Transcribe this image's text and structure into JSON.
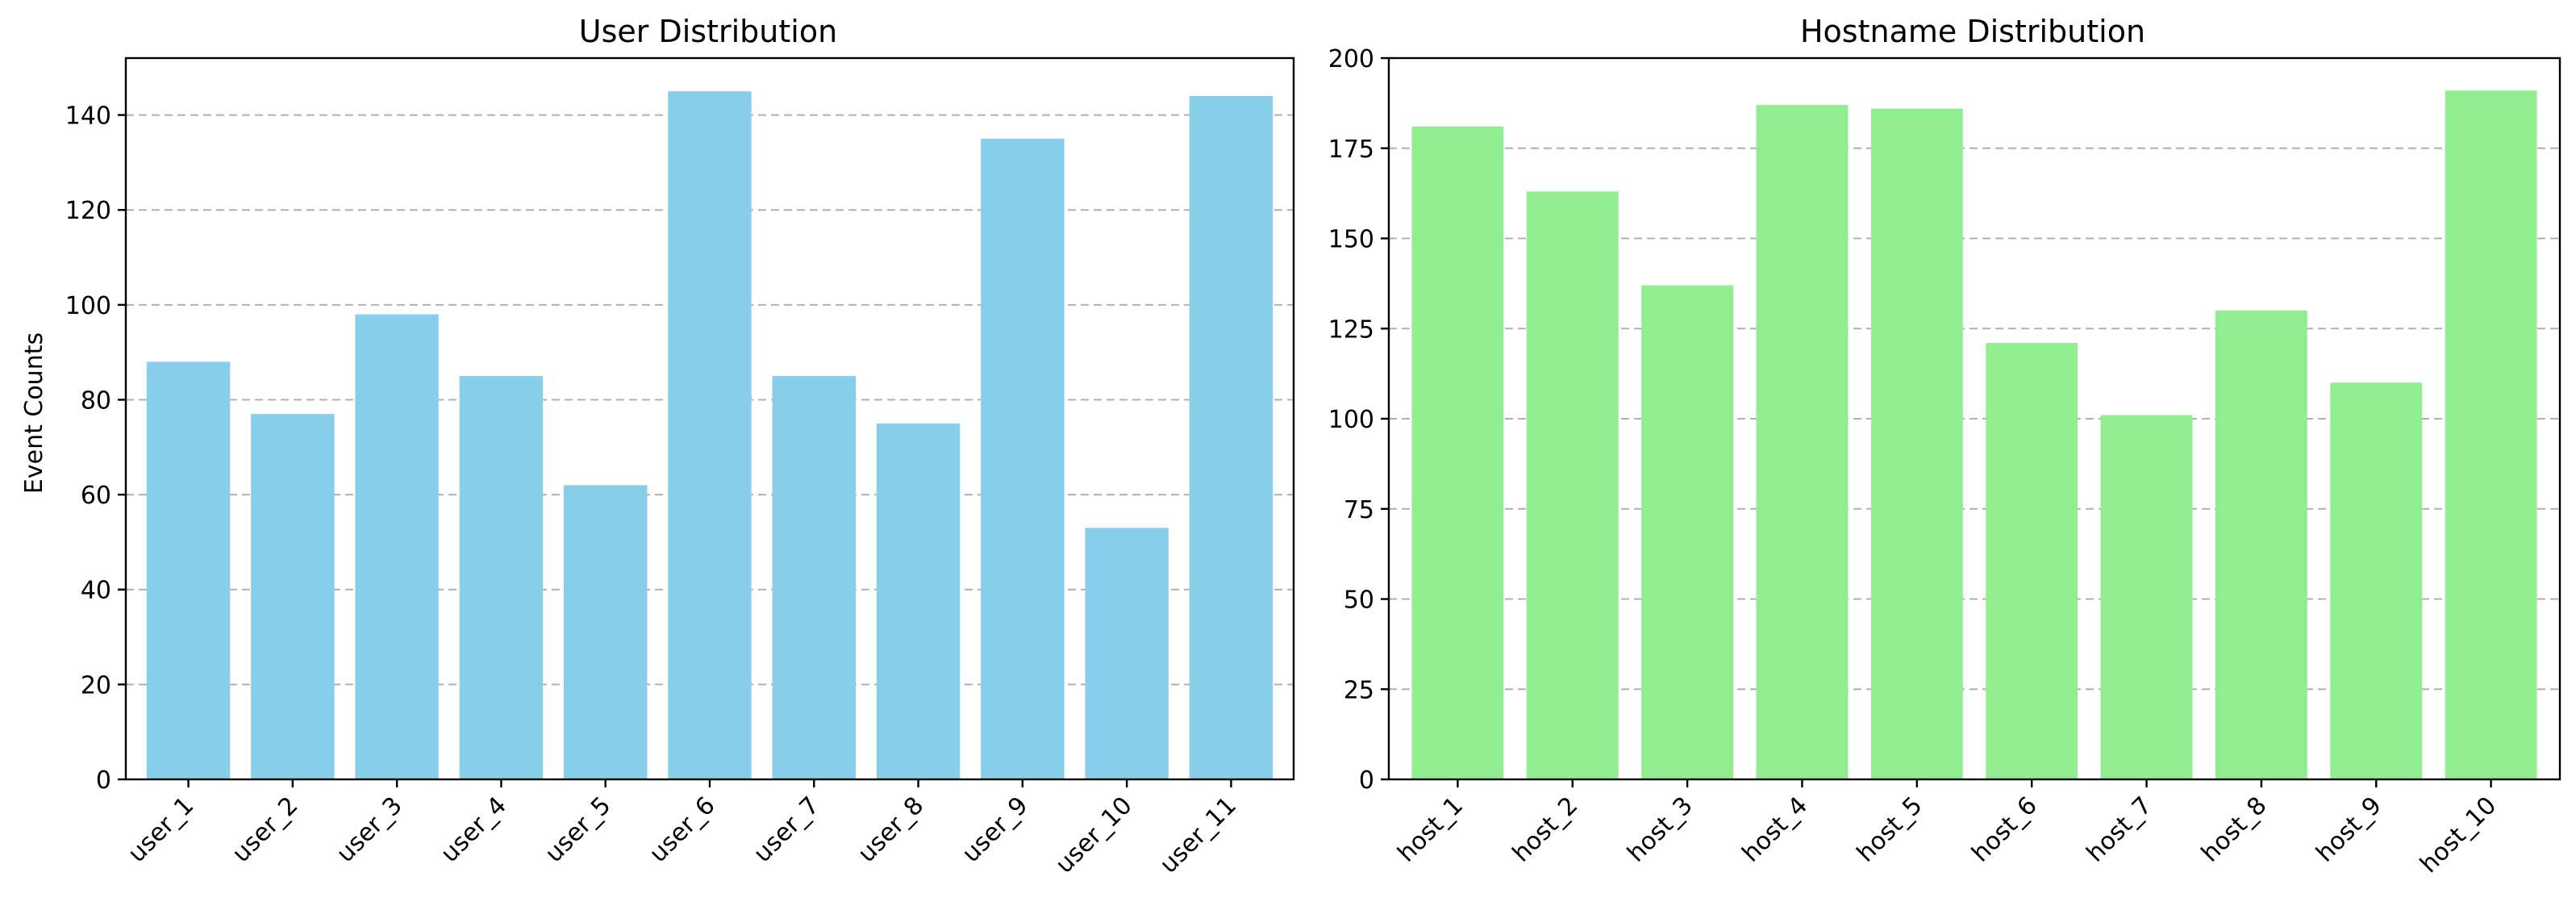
{
  "chart_data": [
    {
      "type": "bar",
      "title": "User Distribution",
      "xlabel": "",
      "ylabel": "Event Counts",
      "categories": [
        "user_1",
        "user_2",
        "user_3",
        "user_4",
        "user_5",
        "user_6",
        "user_7",
        "user_8",
        "user_9",
        "user_10",
        "user_11"
      ],
      "values": [
        88,
        77,
        98,
        85,
        62,
        145,
        85,
        75,
        135,
        53,
        144
      ],
      "ylim": [
        0,
        152
      ],
      "yticks": [
        0,
        20,
        40,
        60,
        80,
        100,
        120,
        140
      ],
      "grid": "y-dashed",
      "color": "#87ceeb"
    },
    {
      "type": "bar",
      "title": "Hostname Distribution",
      "xlabel": "",
      "ylabel": "",
      "categories": [
        "host_1",
        "host_2",
        "host_3",
        "host_4",
        "host_5",
        "host_6",
        "host_7",
        "host_8",
        "host_9",
        "host_10"
      ],
      "values": [
        181,
        163,
        137,
        187,
        186,
        121,
        101,
        130,
        110,
        191
      ],
      "ylim": [
        0,
        200
      ],
      "yticks": [
        0,
        25,
        50,
        75,
        100,
        125,
        150,
        175,
        200
      ],
      "grid": "y-dashed",
      "color": "#90ee90"
    }
  ]
}
